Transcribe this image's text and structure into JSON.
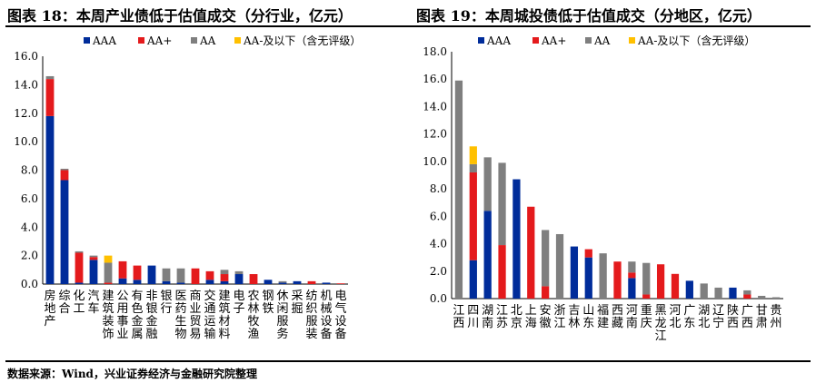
{
  "titles": {
    "left": "图表 18：本周产业债低于估值成交（分行业，亿元）",
    "right": "图表 19：本周城投债低于估值成交（分地区，亿元）"
  },
  "source_note": "数据来源：Wind，兴业证券经济与金融研究院整理",
  "colors": {
    "AAA": "#002c9a",
    "AA+": "#e41a1c",
    "AA": "#7f7f7f",
    "AA-及以下（含无评级）": "#ffc000"
  },
  "chart_data": [
    {
      "type": "bar",
      "stacked": true,
      "title": "图表 18：本周产业债低于估值成交（分行业，亿元）",
      "legend_position": "top",
      "ylim": [
        0,
        16
      ],
      "yticks": [
        "0.0",
        "2.0",
        "4.0",
        "6.0",
        "8.0",
        "10.0",
        "12.0",
        "14.0",
        "16.0"
      ],
      "categories": [
        "房地产",
        "综合",
        "化工",
        "汽车",
        "建筑装饰",
        "公用事业",
        "有色金属",
        "非银金融",
        "银行",
        "医药生物",
        "商业贸易",
        "交通运输",
        "建筑材料",
        "电子",
        "农林牧渔",
        "钢铁",
        "休闲服务",
        "采掘",
        "纺织服装",
        "机械设备",
        "电气设备"
      ],
      "series": [
        {
          "name": "AAA",
          "values": [
            11.8,
            7.3,
            0.1,
            1.7,
            0.0,
            0.4,
            0.3,
            1.3,
            0.2,
            0.1,
            0.0,
            0.3,
            0.2,
            0.7,
            0.0,
            0.3,
            0.1,
            0.2,
            0.0,
            0.1,
            0.0
          ]
        },
        {
          "name": "AA+",
          "values": [
            2.6,
            0.7,
            2.1,
            0.2,
            0.1,
            1.2,
            1.0,
            0.0,
            0.0,
            0.0,
            1.1,
            0.6,
            0.5,
            0.0,
            0.7,
            0.0,
            0.0,
            0.0,
            0.2,
            0.0,
            0.05
          ]
        },
        {
          "name": "AA",
          "values": [
            0.2,
            0.1,
            0.1,
            0.1,
            1.4,
            0.0,
            0.0,
            0.0,
            0.9,
            1.0,
            0.0,
            0.0,
            0.3,
            0.2,
            0.0,
            0.0,
            0.1,
            0.0,
            0.0,
            0.0,
            0.0
          ]
        },
        {
          "name": "AA-及以下（含无评级）",
          "values": [
            0.0,
            0.0,
            0.0,
            0.0,
            0.5,
            0.0,
            0.0,
            0.0,
            0.0,
            0.0,
            0.0,
            0.0,
            0.0,
            0.0,
            0.0,
            0.0,
            0.0,
            0.0,
            0.0,
            0.0,
            0.0
          ]
        }
      ]
    },
    {
      "type": "bar",
      "stacked": true,
      "title": "图表 19：本周城投债低于估值成交（分地区，亿元）",
      "legend_position": "top",
      "ylim": [
        0,
        18
      ],
      "yticks": [
        "0.0",
        "2.0",
        "4.0",
        "6.0",
        "8.0",
        "10.0",
        "12.0",
        "14.0",
        "16.0",
        "18.0"
      ],
      "categories": [
        "江西",
        "四川",
        "湖南",
        "江苏",
        "北京",
        "上海",
        "安徽",
        "浙江",
        "吉林",
        "山东",
        "福建",
        "西藏",
        "河南",
        "重庆",
        "黑龙江",
        "河北",
        "广东",
        "湖北",
        "辽宁",
        "陕西",
        "广西",
        "甘肃",
        "贵州"
      ],
      "series": [
        {
          "name": "AAA",
          "values": [
            0.0,
            2.8,
            6.4,
            0.0,
            8.7,
            0.0,
            0.0,
            0.0,
            3.8,
            3.0,
            0.0,
            0.0,
            1.5,
            0.0,
            0.0,
            0.0,
            1.3,
            0.0,
            0.0,
            0.8,
            0.0,
            0.0,
            0.0
          ]
        },
        {
          "name": "AA+",
          "values": [
            0.0,
            6.4,
            0.0,
            3.9,
            0.0,
            6.7,
            0.9,
            0.0,
            0.0,
            0.6,
            0.0,
            2.7,
            0.4,
            0.3,
            2.5,
            1.8,
            0.0,
            0.0,
            0.0,
            0.0,
            0.3,
            0.0,
            0.0
          ]
        },
        {
          "name": "AA",
          "values": [
            15.9,
            0.6,
            3.9,
            6.0,
            0.0,
            0.0,
            4.1,
            4.7,
            0.0,
            0.0,
            3.3,
            0.0,
            0.8,
            2.3,
            0.0,
            0.0,
            0.0,
            1.1,
            0.8,
            0.0,
            0.3,
            0.2,
            0.1
          ]
        },
        {
          "name": "AA-及以下（含无评级）",
          "values": [
            0.0,
            1.3,
            0.0,
            0.0,
            0.0,
            0.0,
            0.0,
            0.0,
            0.0,
            0.0,
            0.0,
            0.0,
            0.0,
            0.0,
            0.0,
            0.0,
            0.0,
            0.0,
            0.0,
            0.0,
            0.0,
            0.0,
            0.0
          ]
        }
      ]
    }
  ]
}
